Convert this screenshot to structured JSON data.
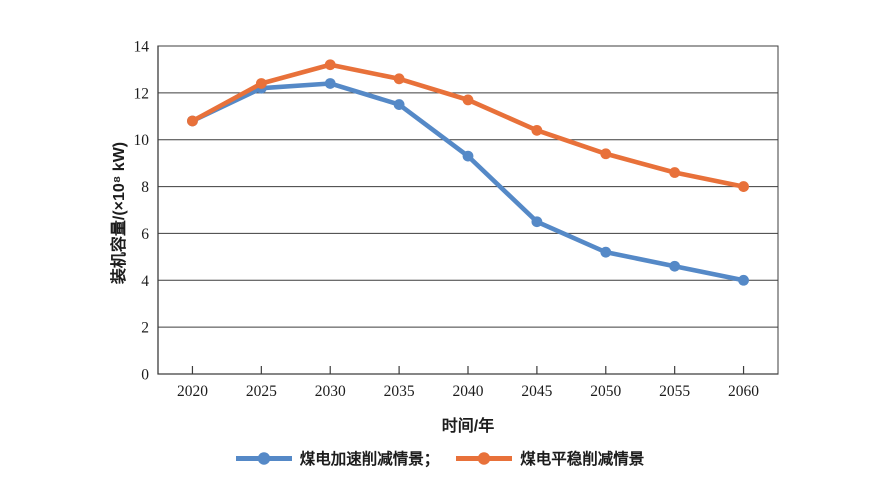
{
  "chart_data": {
    "type": "line",
    "categories": [
      "2020",
      "2025",
      "2030",
      "2035",
      "2040",
      "2045",
      "2050",
      "2055",
      "2060"
    ],
    "series": [
      {
        "name": "煤电加速削减情景",
        "legend_label": "煤电加速削减情景；",
        "color": "#5589C7",
        "values": [
          10.8,
          12.2,
          12.4,
          11.5,
          9.3,
          6.5,
          5.2,
          4.6,
          4.0
        ]
      },
      {
        "name": "煤电平稳削减情景",
        "legend_label": "煤电平稳削减情景",
        "color": "#E8713A",
        "values": [
          10.8,
          12.4,
          13.2,
          12.6,
          11.7,
          10.4,
          9.4,
          8.6,
          8.0
        ]
      }
    ],
    "title": "",
    "xlabel": "时间/年",
    "ylabel": "装机容量/(×10⁸ kW)",
    "ylim": [
      0,
      14
    ],
    "ytick_step": 2,
    "yticks": [
      "0",
      "2",
      "4",
      "6",
      "8",
      "10",
      "12",
      "14"
    ],
    "grid": "horizontal",
    "legend_position": "bottom",
    "axis_color": "#3d3d3d",
    "text_color": "#1c1c1c"
  }
}
